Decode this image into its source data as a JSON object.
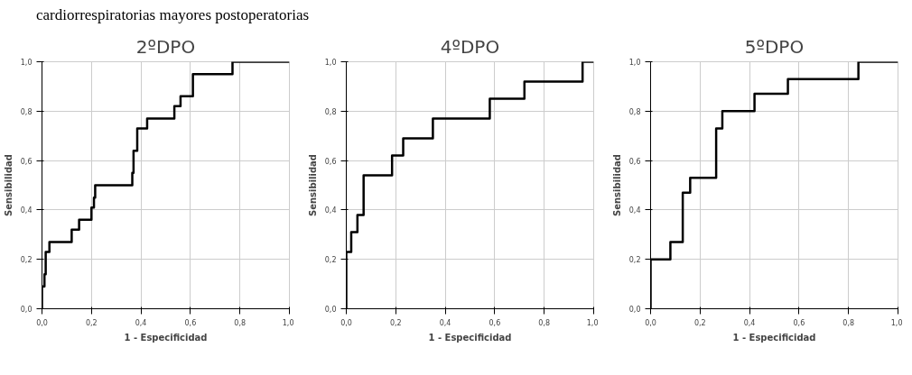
{
  "chart_data": [
    {
      "type": "line",
      "title": "2ºDPO",
      "xlabel": "1 - Especificidad",
      "ylabel": "Sensibilidad",
      "annotations": [
        "cardiorrespiratorias mayores postoperatorias"
      ],
      "x": [
        0,
        0,
        0.01,
        0.01,
        0.015,
        0.015,
        0.03,
        0.03,
        0.12,
        0.12,
        0.15,
        0.15,
        0.2,
        0.2,
        0.21,
        0.21,
        0.215,
        0.215,
        0.365,
        0.365,
        0.37,
        0.37,
        0.385,
        0.385,
        0.425,
        0.425,
        0.535,
        0.535,
        0.56,
        0.56,
        0.61,
        0.61,
        0.77,
        0.77,
        1
      ],
      "values": [
        0,
        0.09,
        0.09,
        0.14,
        0.14,
        0.23,
        0.23,
        0.27,
        0.27,
        0.32,
        0.32,
        0.36,
        0.36,
        0.41,
        0.41,
        0.45,
        0.45,
        0.5,
        0.5,
        0.55,
        0.55,
        0.64,
        0.64,
        0.73,
        0.73,
        0.77,
        0.77,
        0.82,
        0.82,
        0.86,
        0.86,
        0.95,
        0.95,
        1,
        1
      ],
      "color": "#000000",
      "xlim": [
        0,
        1
      ],
      "ylim": [
        0,
        1
      ],
      "xticks": [
        {
          "value": 0,
          "label": "0,0"
        },
        {
          "value": 0.2,
          "label": "0,2"
        },
        {
          "value": 0.4,
          "label": "0,4"
        },
        {
          "value": 0.6,
          "label": "0,6"
        },
        {
          "value": 0.8,
          "label": "0,8"
        },
        {
          "value": 1,
          "label": "1,0"
        }
      ],
      "yticks": [
        {
          "value": 0,
          "label": "0,0"
        },
        {
          "value": 0.2,
          "label": "0,2"
        },
        {
          "value": 0.4,
          "label": "0,4"
        },
        {
          "value": 0.6,
          "label": "0,6"
        },
        {
          "value": 0.8,
          "label": "0,8"
        },
        {
          "value": 1,
          "label": "1,0"
        }
      ],
      "grid": true,
      "line_style": "solid"
    },
    {
      "type": "line",
      "title": "4ºDPO",
      "xlabel": "1 - Especificidad",
      "ylabel": "Sensibilidad",
      "x": [
        0,
        0,
        0.02,
        0.02,
        0.045,
        0.045,
        0.07,
        0.07,
        0.185,
        0.185,
        0.23,
        0.23,
        0.35,
        0.35,
        0.58,
        0.58,
        0.72,
        0.72,
        0.955,
        0.955,
        1
      ],
      "values": [
        0,
        0.23,
        0.23,
        0.31,
        0.31,
        0.38,
        0.38,
        0.54,
        0.54,
        0.62,
        0.62,
        0.69,
        0.69,
        0.77,
        0.77,
        0.85,
        0.85,
        0.92,
        0.92,
        1,
        1
      ],
      "color": "#000000",
      "xlim": [
        0,
        1
      ],
      "ylim": [
        0,
        1
      ],
      "xticks": [
        {
          "value": 0,
          "label": "0,0"
        },
        {
          "value": 0.2,
          "label": "0,2"
        },
        {
          "value": 0.4,
          "label": "0,4"
        },
        {
          "value": 0.6,
          "label": "0,6"
        },
        {
          "value": 0.8,
          "label": "0,8"
        },
        {
          "value": 1,
          "label": "1,0"
        }
      ],
      "yticks": [
        {
          "value": 0,
          "label": "0,0"
        },
        {
          "value": 0.2,
          "label": "0,2"
        },
        {
          "value": 0.4,
          "label": "0,4"
        },
        {
          "value": 0.6,
          "label": "0,6"
        },
        {
          "value": 0.8,
          "label": "0,8"
        },
        {
          "value": 1,
          "label": "1,0"
        }
      ],
      "grid": true,
      "line_style": "solid"
    },
    {
      "type": "line",
      "title": "5ºDPO",
      "xlabel": "1 - Especificidad",
      "ylabel": "Sensibilidad",
      "x": [
        0,
        0,
        0.08,
        0.08,
        0.13,
        0.13,
        0.16,
        0.16,
        0.265,
        0.265,
        0.29,
        0.29,
        0.42,
        0.42,
        0.555,
        0.555,
        0.84,
        0.84,
        1
      ],
      "values": [
        0,
        0.2,
        0.2,
        0.27,
        0.27,
        0.47,
        0.47,
        0.53,
        0.53,
        0.73,
        0.73,
        0.8,
        0.8,
        0.87,
        0.87,
        0.93,
        0.93,
        1,
        1
      ],
      "color": "#000000",
      "xlim": [
        0,
        1
      ],
      "ylim": [
        0,
        1
      ],
      "xticks": [
        {
          "value": 0,
          "label": "0,0"
        },
        {
          "value": 0.2,
          "label": "0,2"
        },
        {
          "value": 0.4,
          "label": "0,4"
        },
        {
          "value": 0.6,
          "label": "0,6"
        },
        {
          "value": 0.8,
          "label": "0,8"
        },
        {
          "value": 1,
          "label": "1,0"
        }
      ],
      "yticks": [
        {
          "value": 0,
          "label": "0,0"
        },
        {
          "value": 0.2,
          "label": "0,2"
        },
        {
          "value": 0.4,
          "label": "0,4"
        },
        {
          "value": 0.6,
          "label": "0,6"
        },
        {
          "value": 0.8,
          "label": "0,8"
        },
        {
          "value": 1,
          "label": "1,0"
        }
      ],
      "grid": true,
      "line_style": "solid"
    }
  ]
}
